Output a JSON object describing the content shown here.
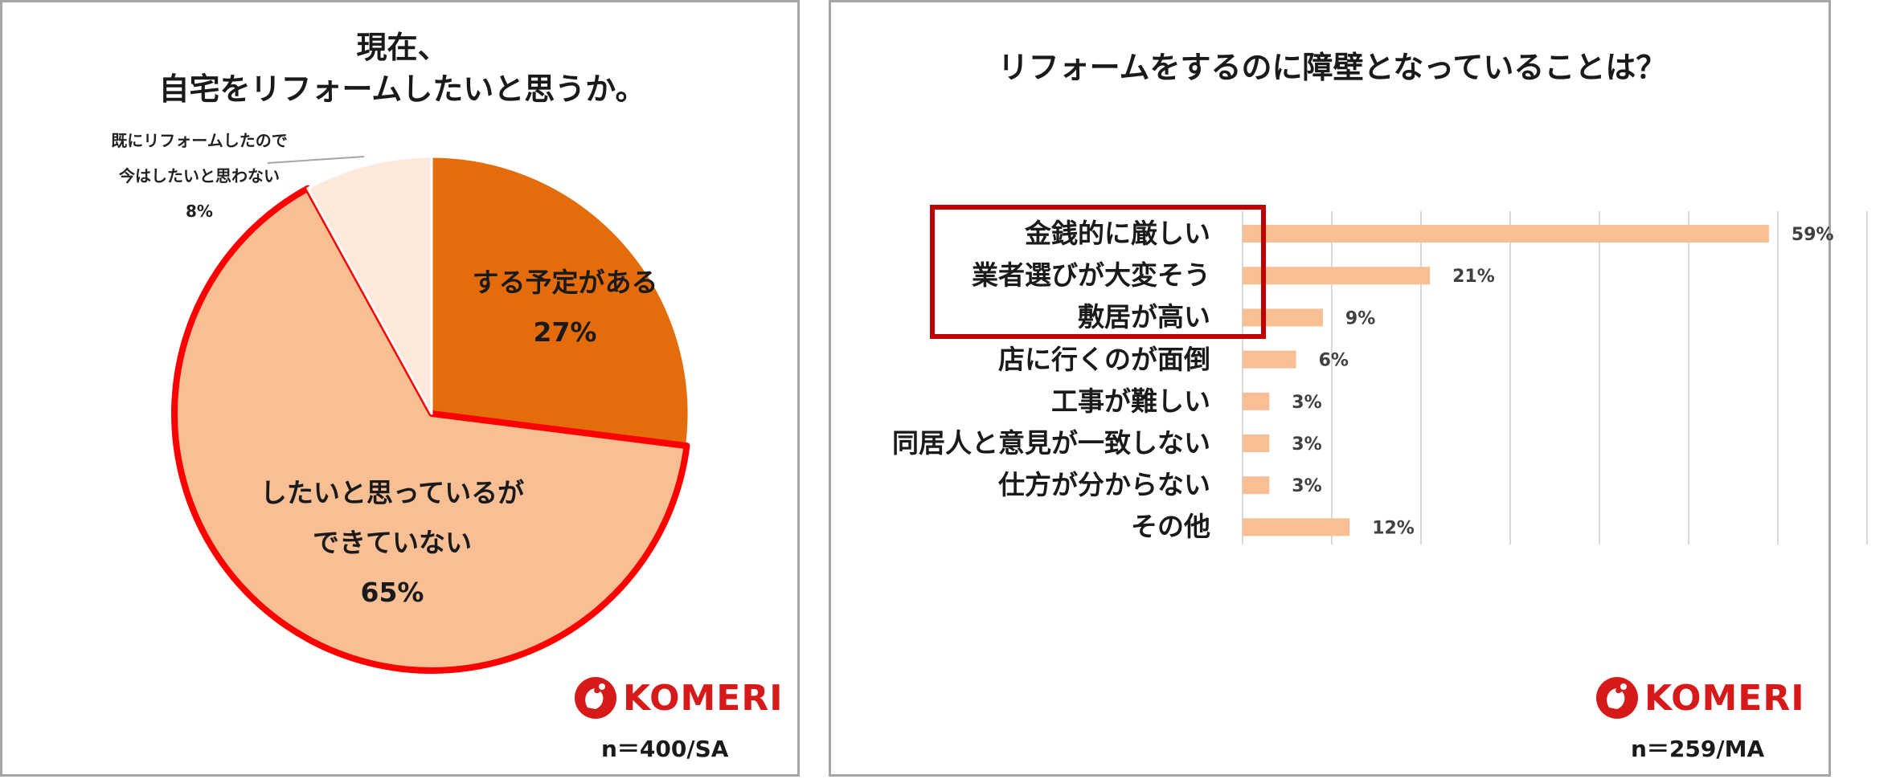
{
  "colors": {
    "dark_orange": "#e46c0a",
    "light_orange": "#f9bf94",
    "pale_orange": "#fce9dc",
    "highlight_red": "#ff0000",
    "box_red": "#c00000",
    "grid": "#d9d9d9",
    "logo_red": "#d61a1a"
  },
  "left": {
    "title_line1": "現在、",
    "title_line2": "自宅をリフォームしたいと思うか。",
    "n_note": "n＝400/SA",
    "logo_text": "KOMERI",
    "small_label_line1": "既にリフォームしたので",
    "small_label_line2": "今はしたいと思わない",
    "small_label_pct": "8%"
  },
  "right": {
    "title": "リフォームをするのに障壁となっていることは？",
    "n_note": "n＝259/MA",
    "logo_text": "KOMERI"
  },
  "chart_data": [
    {
      "type": "pie",
      "title": "現在、自宅をリフォームしたいと思うか。",
      "slices": [
        {
          "label": "する予定がある",
          "value": 27,
          "value_label": "27%",
          "color": "#e46c0a"
        },
        {
          "label": "したいと思っているができていない",
          "label_line1": "したいと思っているが",
          "label_line2": "できていない",
          "value": 65,
          "value_label": "65%",
          "color": "#f9bf94",
          "highlighted": true
        },
        {
          "label": "既にリフォームしたので今はしたいと思わない",
          "value": 8,
          "value_label": "8%",
          "color": "#fce9dc"
        }
      ]
    },
    {
      "type": "bar",
      "orientation": "horizontal",
      "title": "リフォームをするのに障壁となっていることは？",
      "categories": [
        "金銭的に厳しい",
        "業者選びが大変そう",
        "敷居が高い",
        "店に行くのが面倒",
        "工事が難しい",
        "同居人と意見が一致しない",
        "仕方が分からない",
        "その他"
      ],
      "values": [
        59,
        21,
        9,
        6,
        3,
        3,
        3,
        12
      ],
      "value_labels": [
        "59%",
        "21%",
        "9%",
        "6%",
        "3%",
        "3%",
        "3%",
        "12%"
      ],
      "xlim": [
        0,
        70
      ],
      "grid": true,
      "highlighted_categories": [
        "金銭的に厳しい",
        "業者選びが大変そう",
        "敷居が高い"
      ],
      "bar_color": "#f9bf94"
    }
  ]
}
